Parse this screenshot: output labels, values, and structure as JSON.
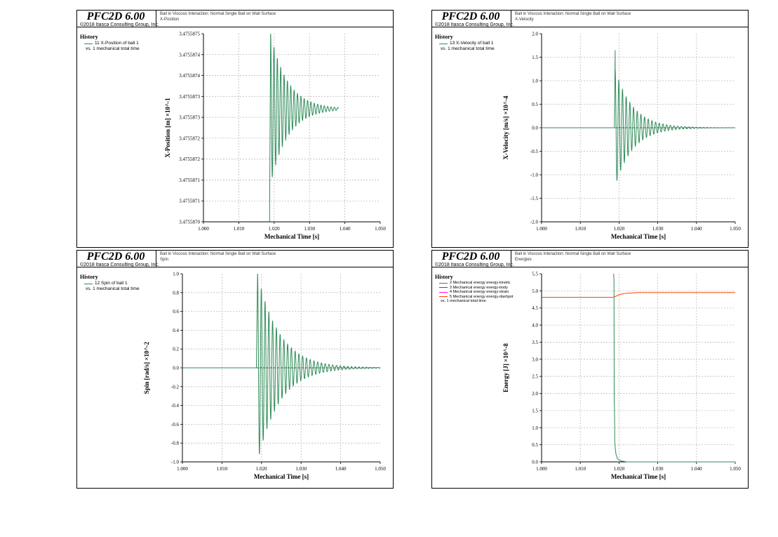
{
  "app": {
    "name": "PFC2D 6.00",
    "copyright": "©2018 Itasca Consulting Group, Inc."
  },
  "panels": [
    {
      "title": "PFC2D 6.00",
      "copyright": "©2018 Itasca Consulting Group, Inc.",
      "header_line1": "Ball in Viscous Interaction: Normal Single Ball on Wall Surface",
      "header_line2": "X-Position",
      "legend_title": "History",
      "legend_items": [
        "11 X-Position of ball 1"
      ],
      "legend_vs": "vs. 1 mechanical total time",
      "colors": [
        "#2e8b57"
      ]
    },
    {
      "title": "PFC2D 6.00",
      "copyright": "©2018 Itasca Consulting Group, Inc.",
      "header_line1": "Ball in Viscous Interaction: Normal Single Ball on Wall Surface",
      "header_line2": "X-Velocity",
      "legend_title": "History",
      "legend_items": [
        "13 X-Velocity of ball 1"
      ],
      "legend_vs": "vs. 1 mechanical total time",
      "colors": [
        "#2e8b57"
      ]
    },
    {
      "title": "PFC2D 6.00",
      "copyright": "©2018 Itasca Consulting Group, Inc.",
      "header_line1": "Ball in Viscous Interaction: Normal Single Ball on Wall Surface",
      "header_line2": "Spin",
      "legend_title": "History",
      "legend_items": [
        "12 Spin of ball 1"
      ],
      "legend_vs": "vs. 1 mechanical total time",
      "colors": [
        "#2e8b57"
      ]
    },
    {
      "title": "PFC2D 6.00",
      "copyright": "©2018 Itasca Consulting Group, Inc.",
      "header_line1": "Ball in Viscous Interaction: Normal Single Ball on Wall Surface",
      "header_line2": "Energies",
      "legend_title": "History",
      "legend_items": [
        "2 Mechanical energy energy-kinetic",
        "3 Mechanical energy energy-body",
        "4 Mechanical energy energy-strain",
        "5 Mechanical energy energy-dashpot"
      ],
      "legend_vs": "vs. 1 mechanical total time",
      "colors": [
        "#2e8b57",
        "#dc143c",
        "#ff00ff",
        "#ff4500"
      ]
    }
  ],
  "chart_data": [
    {
      "type": "line",
      "title": "",
      "xlabel": "Mechanical Time [s]",
      "ylabel": "X-Position [m] ×10^-1",
      "xlim": [
        1.0,
        1.05
      ],
      "ylim": [
        3.475587,
        3.4755875
      ],
      "xticks": [
        "1.000",
        "1.010",
        "1.020",
        "1.030",
        "1.040",
        "1.050"
      ],
      "yticks": [
        "3.4755870",
        "3.4755871",
        "3.4755871",
        "3.4755872",
        "3.4755872",
        "3.4755873",
        "3.4755873",
        "3.4755874",
        "3.4755874",
        "3.4755875"
      ],
      "series": [
        {
          "name": "11 X-Position of ball 1",
          "color": "#2e8b57",
          "values": [
            [
              1.0187,
              3.475587
            ],
            [
              1.019,
              3.4755875
            ],
            [
              1.0195,
              3.4755872
            ],
            [
              1.02,
              3.4755874
            ],
            [
              1.021,
              3.4755872
            ],
            [
              1.022,
              3.4755874
            ],
            [
              1.024,
              3.47558728
            ],
            [
              1.026,
              3.47558735
            ],
            [
              1.03,
              3.4755873
            ],
            [
              1.038,
              3.4755873
            ]
          ]
        }
      ]
    },
    {
      "type": "line",
      "title": "",
      "xlabel": "Mechanical Time [s]",
      "ylabel": "X-Velocity [m/s] ×10^-4",
      "xlim": [
        1.0,
        1.05
      ],
      "ylim": [
        -2.0,
        2.0
      ],
      "xticks": [
        "1.000",
        "1.010",
        "1.020",
        "1.030",
        "1.040",
        "1.050"
      ],
      "yticks": [
        "-2.0",
        "-1.5",
        "-1.0",
        "-0.5",
        "0.0",
        "0.5",
        "1.0",
        "1.5",
        "2.0"
      ],
      "series": [
        {
          "name": "13 X-Velocity of ball 1",
          "color": "#2e8b57",
          "values": [
            [
              1.0185,
              0.0
            ],
            [
              1.019,
              1.65
            ],
            [
              1.0195,
              -1.0
            ],
            [
              1.02,
              0.9
            ],
            [
              1.0205,
              -0.6
            ],
            [
              1.022,
              0.3
            ],
            [
              1.024,
              -0.2
            ],
            [
              1.028,
              0.05
            ],
            [
              1.03,
              0.0
            ],
            [
              1.05,
              0.0
            ]
          ]
        }
      ]
    },
    {
      "type": "line",
      "title": "",
      "xlabel": "Mechanical Time [s]",
      "ylabel": "Spin [rad/s] ×10^-2",
      "xlim": [
        1.0,
        1.05
      ],
      "ylim": [
        -1.0,
        1.0
      ],
      "xticks": [
        "1.000",
        "1.010",
        "1.020",
        "1.030",
        "1.040",
        "1.050"
      ],
      "yticks": [
        "-1.0",
        "-0.8",
        "-0.6",
        "-0.4",
        "-0.2",
        "0.0",
        "0.2",
        "0.4",
        "0.6",
        "0.8",
        "1.0"
      ],
      "series": [
        {
          "name": "12 Spin of ball 1",
          "color": "#2e8b57",
          "values": [
            [
              1.019,
              1.0
            ],
            [
              1.0195,
              -1.0
            ],
            [
              1.02,
              0.95
            ],
            [
              1.021,
              -0.75
            ],
            [
              1.022,
              0.6
            ],
            [
              1.024,
              0.3
            ],
            [
              1.026,
              0.12
            ],
            [
              1.03,
              0.02
            ],
            [
              1.035,
              0.0
            ],
            [
              1.05,
              0.0
            ]
          ]
        }
      ]
    },
    {
      "type": "line",
      "title": "",
      "xlabel": "Mechanical Time [s]",
      "ylabel": "Energy [J] ×10^-8",
      "xlim": [
        1.0,
        1.05
      ],
      "ylim": [
        0.0,
        6.0
      ],
      "xticks": [
        "1.000",
        "1.010",
        "1.020",
        "1.030",
        "1.040",
        "1.050"
      ],
      "yticks": [
        "0.0",
        "0.5",
        "1.0",
        "1.5",
        "2.0",
        "2.5",
        "3.0",
        "3.5",
        "4.0",
        "4.5",
        "5.0",
        "5.5"
      ],
      "series": [
        {
          "name": "2 Mechanical energy energy-kinetic",
          "color": "#2e8b57",
          "values": [
            [
              1.0185,
              6.0
            ],
            [
              1.0187,
              2.0
            ],
            [
              1.0188,
              1.5
            ],
            [
              1.019,
              0.5
            ],
            [
              1.0195,
              0.1
            ],
            [
              1.022,
              0.0
            ],
            [
              1.05,
              0.0
            ]
          ]
        },
        {
          "name": "5 Mechanical energy energy-dashpot",
          "color": "#ff4500",
          "values": [
            [
              1.0,
              5.25
            ],
            [
              1.0185,
              5.25
            ],
            [
              1.02,
              5.35
            ],
            [
              1.025,
              5.4
            ],
            [
              1.05,
              5.4
            ]
          ]
        }
      ]
    }
  ]
}
